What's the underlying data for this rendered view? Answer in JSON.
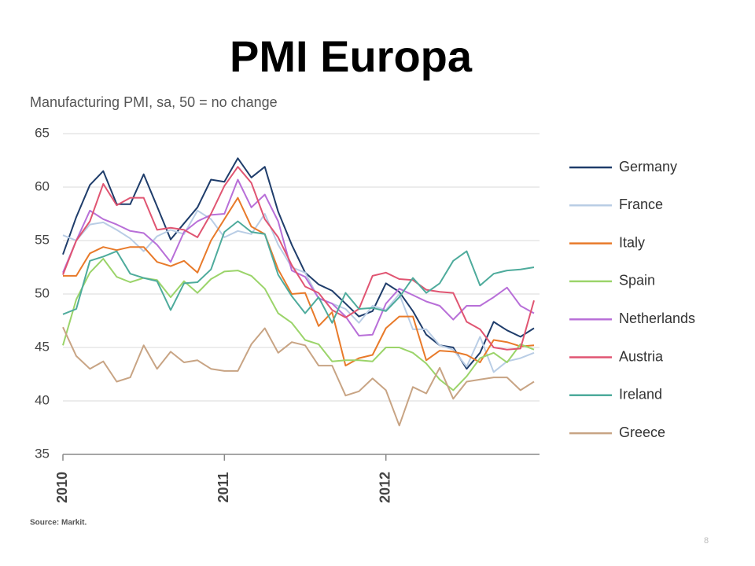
{
  "chart_data": {
    "type": "line",
    "title": "PMI Europa",
    "subtitle": "Manufacturing PMI, sa, 50 = no change",
    "source": "Source: Markit.",
    "page_number": "8",
    "x": [
      2010,
      2010.083,
      2010.167,
      2010.25,
      2010.333,
      2010.417,
      2010.5,
      2010.583,
      2010.667,
      2010.75,
      2010.833,
      2010.917,
      2011,
      2011.083,
      2011.167,
      2011.25,
      2011.333,
      2011.417,
      2011.5,
      2011.583,
      2011.667,
      2011.75,
      2011.833,
      2011.917,
      2012,
      2012.083,
      2012.167,
      2012.25,
      2012.333,
      2012.417,
      2012.5,
      2012.583,
      2012.667,
      2012.75,
      2012.833,
      2012.917
    ],
    "xlim": [
      2010,
      2012.917
    ],
    "xticks": [
      2010,
      2011,
      2012
    ],
    "ylim": [
      35,
      65
    ],
    "yticks": [
      35,
      40,
      45,
      50,
      55,
      60,
      65
    ],
    "grid": true,
    "legend": "right",
    "series": [
      {
        "name": "Germany",
        "color": "#1f3d6b",
        "values": [
          53.7,
          57.2,
          60.2,
          61.5,
          58.4,
          58.4,
          61.2,
          58.2,
          55.1,
          56.6,
          58.1,
          60.7,
          60.5,
          62.7,
          60.9,
          61.9,
          57.7,
          54.6,
          52.0,
          50.9,
          50.3,
          49.1,
          47.9,
          48.4,
          51.0,
          50.2,
          48.4,
          46.2,
          45.2,
          45.0,
          43.0,
          44.5,
          47.4,
          46.6,
          46.0,
          46.8
        ]
      },
      {
        "name": "France",
        "color": "#b9cde5",
        "values": [
          55.5,
          55.0,
          56.5,
          56.7,
          56.0,
          55.2,
          54.0,
          55.4,
          56.0,
          55.6,
          57.8,
          57.0,
          55.3,
          55.9,
          55.6,
          57.5,
          54.6,
          52.5,
          52.0,
          49.6,
          49.1,
          48.6,
          47.3,
          48.9,
          48.5,
          50.0,
          46.7,
          46.7,
          45.2,
          44.8,
          43.2,
          46.0,
          42.7,
          43.7,
          44.0,
          44.5
        ]
      },
      {
        "name": "Italy",
        "color": "#e87a2a",
        "values": [
          51.7,
          51.7,
          53.8,
          54.4,
          54.1,
          54.4,
          54.4,
          53.0,
          52.6,
          53.1,
          52.0,
          55.0,
          57.0,
          59.0,
          56.3,
          55.6,
          52.3,
          50.0,
          50.1,
          47.0,
          48.3,
          43.3,
          44.0,
          44.3,
          46.8,
          47.9,
          47.9,
          43.8,
          44.7,
          44.6,
          44.3,
          43.6,
          45.7,
          45.5,
          45.1,
          45.2
        ]
      },
      {
        "name": "Spain",
        "color": "#9bd46a",
        "values": [
          45.2,
          49.5,
          52.0,
          53.3,
          51.6,
          51.1,
          51.5,
          51.3,
          49.7,
          51.2,
          50.1,
          51.4,
          52.1,
          52.2,
          51.7,
          50.5,
          48.2,
          47.3,
          45.7,
          45.3,
          43.7,
          43.8,
          43.8,
          43.7,
          45.0,
          45.0,
          44.5,
          43.5,
          42.0,
          41.0,
          42.3,
          44.0,
          44.5,
          43.6,
          45.3,
          44.8
        ]
      },
      {
        "name": "Netherlands",
        "color": "#b86fd8",
        "values": [
          52.0,
          55.0,
          57.8,
          57.0,
          56.5,
          55.9,
          55.7,
          54.6,
          53.0,
          55.8,
          56.8,
          57.4,
          57.5,
          60.7,
          58.1,
          59.3,
          56.8,
          52.2,
          51.6,
          49.6,
          49.1,
          47.9,
          46.1,
          46.2,
          49.1,
          50.5,
          49.9,
          49.3,
          48.9,
          47.6,
          48.9,
          48.9,
          49.7,
          50.6,
          48.9,
          48.2
        ]
      },
      {
        "name": "Austria",
        "color": "#e05572",
        "values": [
          51.8,
          55.0,
          56.8,
          60.3,
          58.3,
          59.0,
          59.0,
          56.0,
          56.2,
          56.0,
          55.3,
          57.5,
          60.1,
          61.9,
          60.4,
          57.0,
          55.3,
          52.7,
          50.7,
          50.1,
          48.5,
          47.8,
          48.6,
          51.7,
          52.0,
          51.4,
          51.3,
          50.4,
          50.2,
          50.1,
          47.4,
          46.7,
          45.0,
          44.8,
          44.9,
          49.4
        ]
      },
      {
        "name": "Ireland",
        "color": "#4eab9c",
        "values": [
          48.1,
          48.6,
          53.1,
          53.5,
          54.0,
          51.9,
          51.5,
          51.2,
          48.5,
          51.0,
          51.1,
          52.3,
          55.8,
          56.8,
          55.8,
          55.6,
          51.8,
          49.8,
          48.2,
          49.7,
          47.3,
          50.1,
          48.6,
          48.7,
          48.4,
          49.7,
          51.5,
          50.1,
          51.0,
          53.1,
          54.0,
          50.8,
          51.9,
          52.2,
          52.3,
          52.5
        ]
      },
      {
        "name": "Greece",
        "color": "#c8a484",
        "values": [
          46.9,
          44.2,
          43.0,
          43.7,
          41.8,
          42.2,
          45.2,
          43.0,
          44.6,
          43.6,
          43.8,
          43.0,
          42.8,
          42.8,
          45.3,
          46.8,
          44.5,
          45.5,
          45.2,
          43.3,
          43.3,
          40.5,
          40.9,
          42.1,
          41.0,
          37.7,
          41.3,
          40.7,
          43.1,
          40.2,
          41.8,
          42.0,
          42.2,
          42.2,
          41.0,
          41.8
        ]
      }
    ]
  }
}
